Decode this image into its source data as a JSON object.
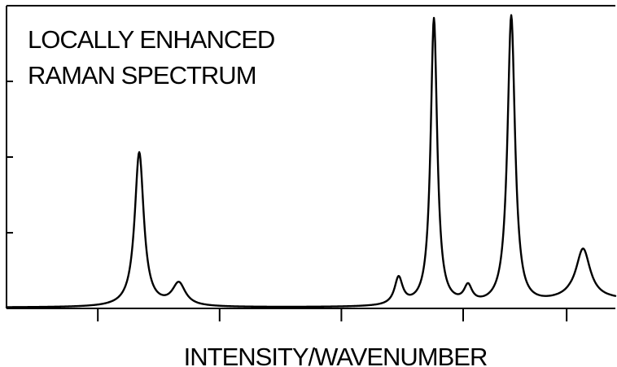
{
  "chart_data": {
    "type": "line",
    "title_lines": [
      "LOCALLY ENHANCED",
      "RAMAN SPECTRUM"
    ],
    "xlabel": "INTENSITY/WAVENUMBER",
    "ylabel": "",
    "grid": false,
    "legend": "none",
    "xlim": [
      0,
      100
    ],
    "ylim": [
      0,
      100
    ],
    "x_ticks": [
      15,
      35,
      55,
      75,
      92
    ],
    "y_ticks": [
      25,
      50,
      75
    ],
    "series": [
      {
        "baseline": 0.3,
        "peaks": [
          {
            "center": 21.8,
            "height": 51,
            "width": 0.9
          },
          {
            "center": 28.3,
            "height": 7.5,
            "width": 1.3
          },
          {
            "center": 64.4,
            "height": 9,
            "width": 0.8
          },
          {
            "center": 70.2,
            "height": 95,
            "width": 0.65
          },
          {
            "center": 75.8,
            "height": 5.6,
            "width": 0.8
          },
          {
            "center": 82.9,
            "height": 96,
            "width": 0.75
          },
          {
            "center": 94.7,
            "height": 16.5,
            "width": 1.4
          }
        ],
        "ramp": {
          "start": 85,
          "end": 92.5,
          "level": 2.5
        },
        "sample_step": 0.1
      }
    ]
  }
}
